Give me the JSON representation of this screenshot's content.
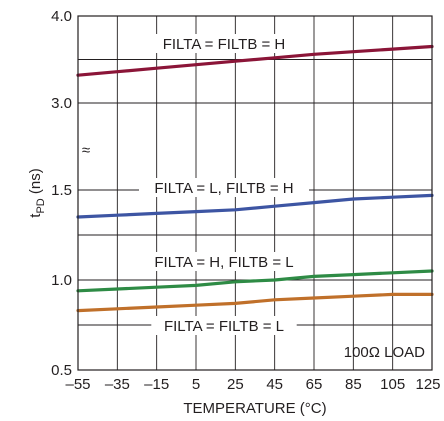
{
  "chart_data": {
    "type": "line",
    "xlabel": "TEMPERATURE (°C)",
    "ylabel": "t",
    "ylabel_sub": "PD",
    "ylabel_unit": " (ns)",
    "x_ticks": [
      "–55",
      "–35",
      "–15",
      "5",
      "25",
      "45",
      "65",
      "85",
      "105",
      "125"
    ],
    "x_tick_values": [
      -55,
      -35,
      -15,
      5,
      25,
      45,
      65,
      85,
      105,
      125
    ],
    "xlim": [
      -55,
      125
    ],
    "y_ticks": [
      "4.0",
      "3.0",
      "1.5",
      "1.0",
      "0.5"
    ],
    "y_scale": "broken axis: 0.5–1.5 ns lower segment, 3.0–4.0 ns upper segment",
    "y_segments": [
      {
        "range": [
          0.5,
          1.5
        ],
        "gridlines": [
          0.5,
          0.75,
          1.0,
          1.25,
          1.5
        ]
      },
      {
        "range": [
          3.0,
          4.0
        ],
        "gridlines": [
          3.0,
          3.5,
          4.0
        ]
      }
    ],
    "break_symbol": "≈",
    "grid": true,
    "load_label": "100Ω LOAD",
    "series": [
      {
        "name": "FILTA = FILTB = H",
        "color": "#8b1538",
        "x": [
          -55,
          -35,
          -15,
          5,
          25,
          45,
          65,
          85,
          105,
          125
        ],
        "y": [
          3.32,
          3.36,
          3.4,
          3.44,
          3.48,
          3.52,
          3.56,
          3.59,
          3.62,
          3.65
        ]
      },
      {
        "name": "FILTA = L, FILTB = H",
        "color": "#3d55a3",
        "x": [
          -55,
          -35,
          -15,
          5,
          25,
          45,
          65,
          85,
          105,
          125
        ],
        "y": [
          1.35,
          1.36,
          1.37,
          1.38,
          1.39,
          1.41,
          1.43,
          1.45,
          1.46,
          1.47
        ]
      },
      {
        "name": "FILTA = H, FILTB = L",
        "color": "#2e8b45",
        "x": [
          -55,
          -35,
          -15,
          5,
          25,
          45,
          65,
          85,
          105,
          125
        ],
        "y": [
          0.94,
          0.95,
          0.96,
          0.97,
          0.99,
          1.0,
          1.02,
          1.03,
          1.04,
          1.05
        ]
      },
      {
        "name": "FILTA = FILTB = L",
        "color": "#c0702a",
        "x": [
          -55,
          -35,
          -15,
          5,
          25,
          45,
          65,
          85,
          105,
          125
        ],
        "y": [
          0.83,
          0.84,
          0.85,
          0.86,
          0.87,
          0.89,
          0.9,
          0.91,
          0.92,
          0.92
        ]
      }
    ]
  }
}
